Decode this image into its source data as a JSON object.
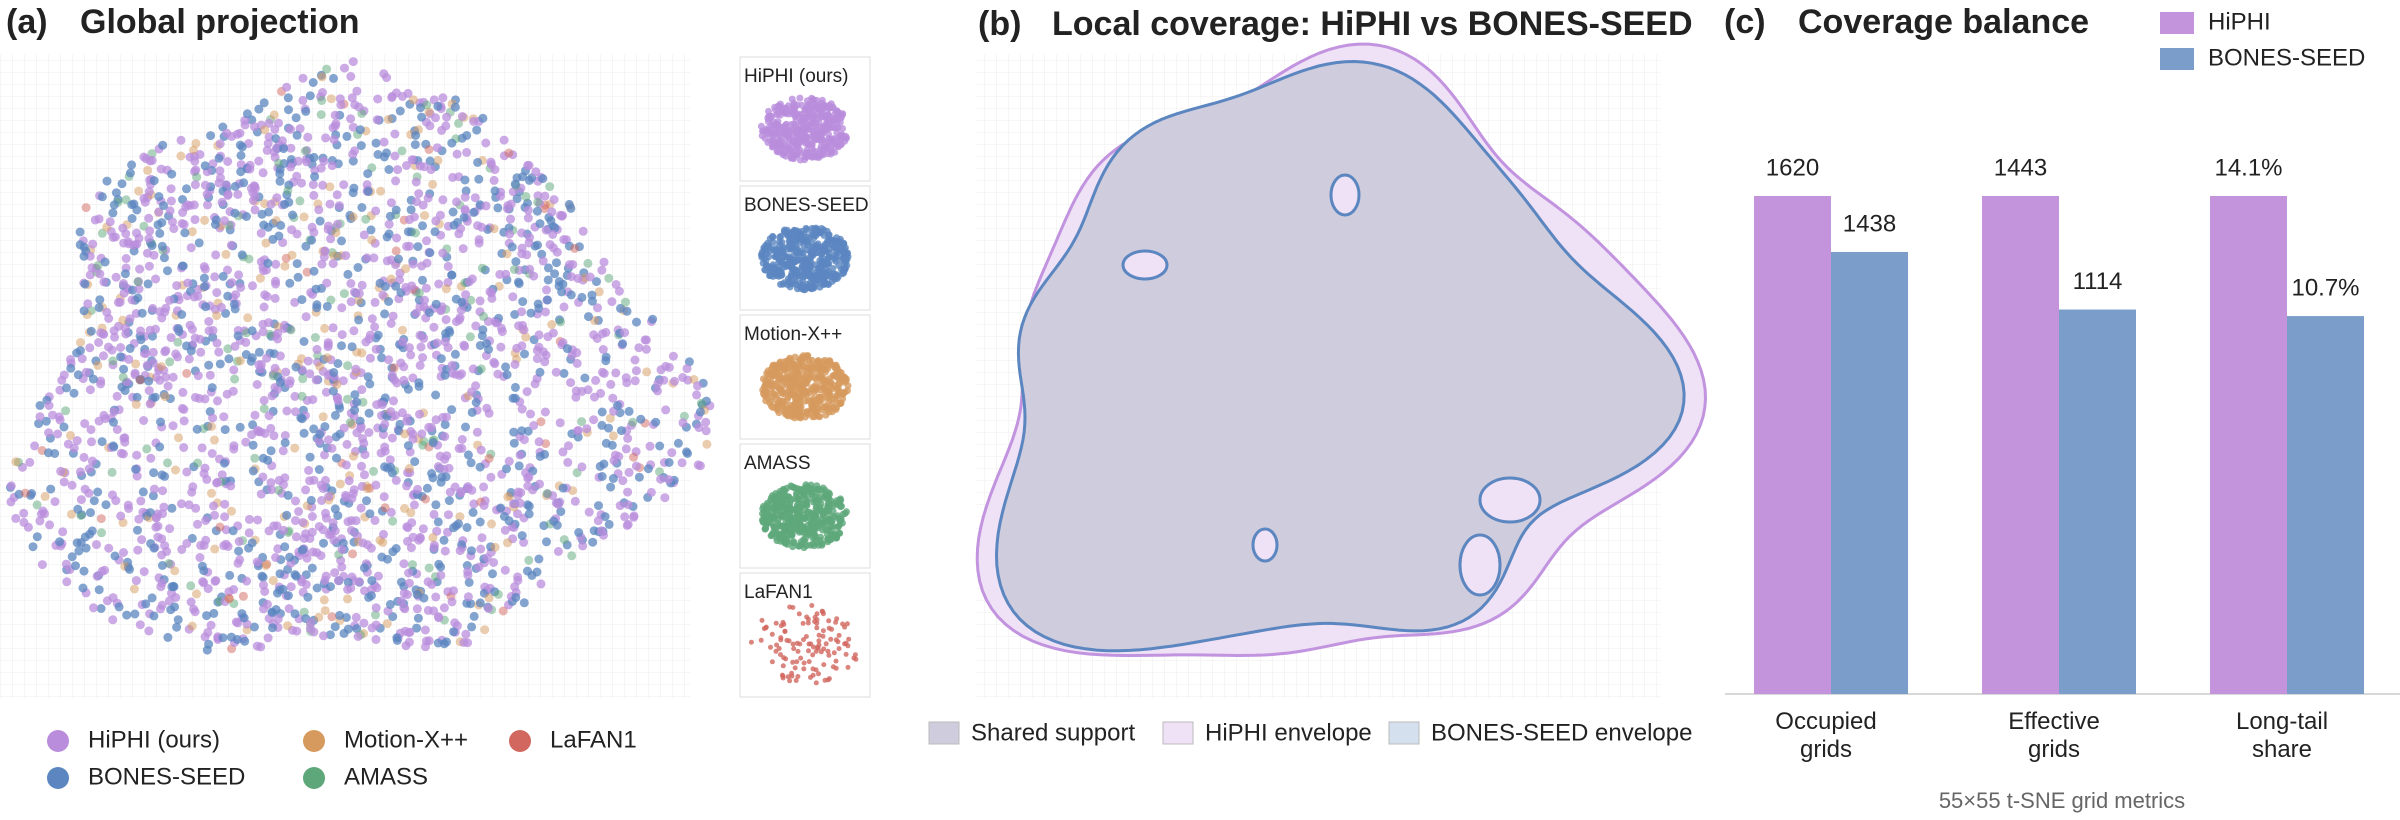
{
  "panel_a": {
    "label": "(a)",
    "title": "Global projection",
    "legend": [
      {
        "name": "HiPHI (ours)",
        "color": "#b98ddc"
      },
      {
        "name": "BONES-SEED",
        "color": "#5b86c0"
      },
      {
        "name": "Motion-X++",
        "color": "#d69a5e"
      },
      {
        "name": "AMASS",
        "color": "#5ea77a"
      },
      {
        "name": "LaFAN1",
        "color": "#d2675f"
      }
    ],
    "insets": [
      "HiPHI (ours)",
      "BONES-SEED",
      "Motion-X++",
      "AMASS",
      "LaFAN1"
    ]
  },
  "panel_b": {
    "label": "(b)",
    "title": "Local coverage: HiPHI vs BONES-SEED",
    "legend": [
      {
        "name": "Shared support",
        "color": "#cfccdd"
      },
      {
        "name": "HiPHI envelope",
        "color": "#efe1f6"
      },
      {
        "name": "BONES-SEED envelope",
        "color": "#d5e0ee"
      }
    ]
  },
  "chart_data": {
    "type": "bar",
    "label": "(c)",
    "title": "Coverage balance",
    "categories": [
      "Occupied grids",
      "Effective grids",
      "Long-tail share"
    ],
    "series": [
      {
        "name": "HiPHI",
        "color": "#c394dc",
        "values": [
          1620,
          1443,
          14.1
        ],
        "value_labels": [
          "1620",
          "1443",
          "14.1%"
        ]
      },
      {
        "name": "BONES-SEED",
        "color": "#7a9dc9",
        "values": [
          1438,
          1114,
          10.7
        ],
        "value_labels": [
          "1438",
          "1114",
          "10.7%"
        ]
      }
    ],
    "xlabel": "55×55 t-SNE grid metrics"
  }
}
